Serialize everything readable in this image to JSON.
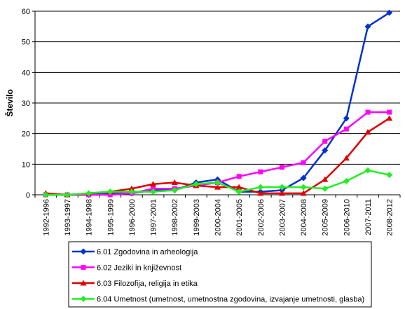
{
  "chart_data": {
    "type": "line",
    "title": "",
    "xlabel": "",
    "ylabel": "Število",
    "ylim": [
      0,
      60
    ],
    "yticks": [
      "0",
      "10",
      "20",
      "30",
      "40",
      "50",
      "60"
    ],
    "grid": "horizontal",
    "legend_position": "bottom",
    "x": [
      "1992-1996",
      "1993-1997",
      "1994-1998",
      "1995-1999",
      "1996-2000",
      "1997-2001",
      "1998-2002",
      "1999-2003",
      "2000-2004",
      "2001-2005",
      "2002-2006",
      "2003-2007",
      "2004-2008",
      "2005-2009",
      "2006-2010",
      "2007-2011",
      "2008-2012"
    ],
    "series": [
      {
        "name": "6.01 Zgodovina in arheologija",
        "color": "#0033cc",
        "marker": "diamond",
        "values": [
          0,
          0,
          0,
          0.5,
          0.5,
          1.5,
          1.5,
          4,
          5,
          1,
          1,
          1.5,
          5.5,
          14.5,
          25,
          55,
          59.5
        ]
      },
      {
        "name": "6.02 Jeziki in književnost",
        "color": "#ff00ff",
        "marker": "square",
        "values": [
          0,
          0,
          0,
          0,
          0.5,
          2,
          2,
          3,
          4,
          6,
          7.5,
          9,
          10.5,
          17.5,
          21.5,
          27,
          27
        ]
      },
      {
        "name": "6.03 Filozofija, religija in etika",
        "color": "#dd0000",
        "marker": "triangle",
        "values": [
          0.5,
          0,
          0.5,
          1,
          2,
          3.5,
          4,
          3,
          2.5,
          2.5,
          0.5,
          0.5,
          0.5,
          5,
          12,
          20.5,
          25
        ]
      },
      {
        "name": "6.04 Umetnost (umetnost, umetnostna zgodovina, izvajanje umetnosti, glasba)",
        "color": "#22ee22",
        "marker": "diamond",
        "values": [
          0,
          0,
          0.5,
          1,
          1,
          1,
          1.5,
          3.5,
          4,
          1,
          2.5,
          2.5,
          2.5,
          2,
          4.5,
          8,
          6.5
        ]
      }
    ]
  }
}
